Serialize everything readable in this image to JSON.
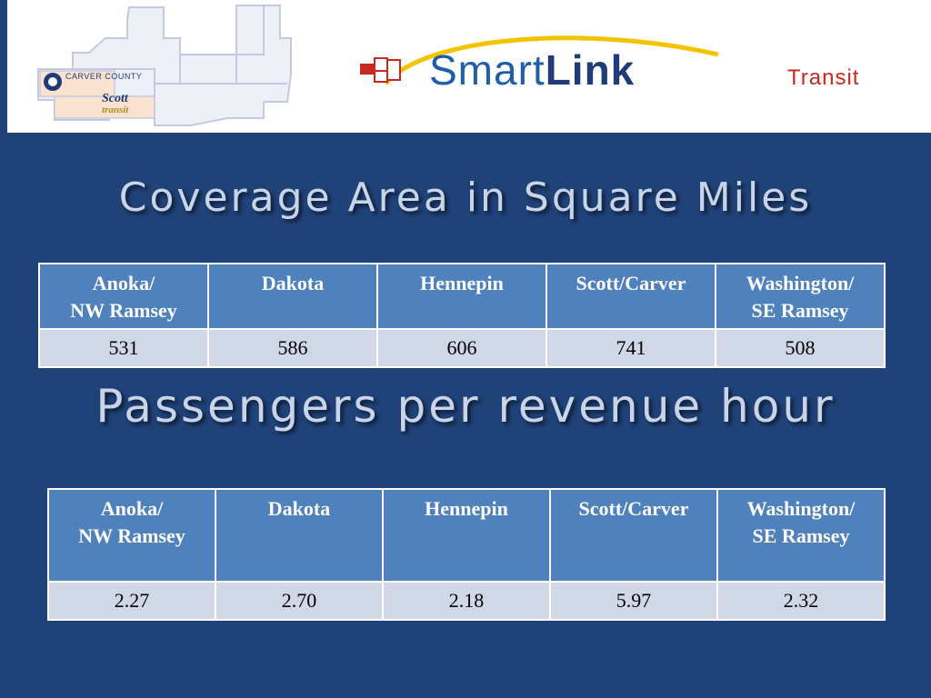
{
  "header": {
    "county_logo": {
      "carver_text": "CARVER COUNTY",
      "scott_text": "Scott",
      "transit_text": "transit"
    },
    "brand": {
      "smart": "Smart",
      "link": "Link",
      "transit": "Transit",
      "colors": {
        "smart": "#1f5fa8",
        "link": "#1f3c78",
        "transit": "#c8281e",
        "swoosh": "#f2c400"
      }
    }
  },
  "coverage": {
    "title": "Coverage Area in Square Miles",
    "headers": [
      [
        "Anoka/",
        "NW Ramsey"
      ],
      [
        "Dakota"
      ],
      [
        "Hennepin"
      ],
      [
        "Scott/Carver"
      ],
      [
        "Washington/",
        "SE Ramsey"
      ]
    ],
    "values": [
      "531",
      "586",
      "606",
      "741",
      "508"
    ]
  },
  "passengers": {
    "title": "Passengers per revenue hour",
    "headers": [
      [
        "Anoka/",
        "NW Ramsey"
      ],
      [
        "Dakota"
      ],
      [
        "Hennepin"
      ],
      [
        "Scott/Carver"
      ],
      [
        "Washington/",
        "SE Ramsey"
      ]
    ],
    "values": [
      "2.27",
      "2.70",
      "2.18",
      "5.97",
      "2.32"
    ]
  },
  "theme": {
    "background": "#1f4278",
    "header_cell": "#4f81bd",
    "body_cell": "#d0d8e8",
    "title_text": "#c9d4e8"
  }
}
